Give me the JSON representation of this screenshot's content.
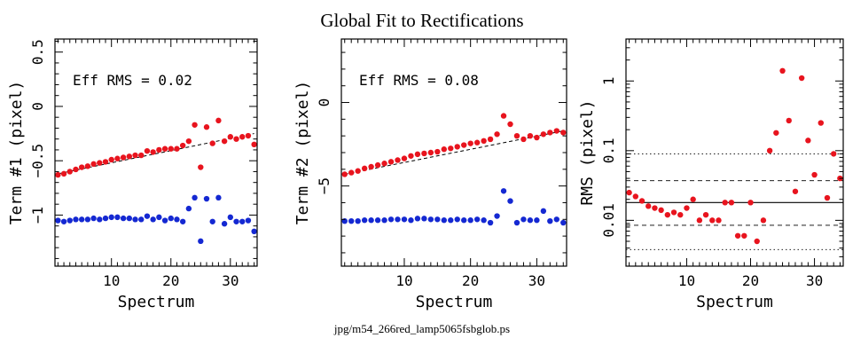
{
  "figure": {
    "title": "Global Fit to Rectifications",
    "footer": "jpg/m54_266red_lamp5065fsbglob.ps"
  },
  "colors": {
    "red": "#e8141e",
    "blue": "#1428d2",
    "axis": "#000000"
  },
  "chart_data": [
    {
      "type": "scatter",
      "xlabel": "Spectrum",
      "ylabel": "Term #1  (pixel)",
      "annotation": "Eff RMS = 0.02",
      "xlim": [
        0.5,
        34.5
      ],
      "ylim": [
        -1.47,
        0.62
      ],
      "xticks": [
        10,
        20,
        30
      ],
      "yticks": [
        -1,
        -0.5,
        0,
        0.5
      ],
      "ytick_labels": [
        "−1",
        "−0.5",
        "0",
        "0.5"
      ],
      "series": [
        {
          "color": "red",
          "x": [
            1,
            2,
            3,
            4,
            5,
            6,
            7,
            8,
            9,
            10,
            11,
            12,
            13,
            14,
            15,
            16,
            17,
            18,
            19,
            20,
            21,
            22,
            23,
            24,
            25,
            26,
            27,
            28,
            29,
            30,
            31,
            32,
            33,
            34
          ],
          "y": [
            -0.63,
            -0.62,
            -0.6,
            -0.58,
            -0.56,
            -0.55,
            -0.53,
            -0.52,
            -0.51,
            -0.49,
            -0.48,
            -0.47,
            -0.46,
            -0.45,
            -0.45,
            -0.41,
            -0.42,
            -0.4,
            -0.39,
            -0.39,
            -0.39,
            -0.36,
            -0.32,
            -0.17,
            -0.56,
            -0.19,
            -0.34,
            -0.13,
            -0.32,
            -0.28,
            -0.3,
            -0.28,
            -0.27,
            -0.35
          ]
        },
        {
          "color": "blue",
          "x": [
            1,
            2,
            3,
            4,
            5,
            6,
            7,
            8,
            9,
            10,
            11,
            12,
            13,
            14,
            15,
            16,
            17,
            18,
            19,
            20,
            21,
            22,
            23,
            24,
            25,
            26,
            27,
            28,
            29,
            30,
            31,
            32,
            33,
            34
          ],
          "y": [
            -1.05,
            -1.06,
            -1.05,
            -1.04,
            -1.04,
            -1.04,
            -1.03,
            -1.04,
            -1.03,
            -1.02,
            -1.02,
            -1.03,
            -1.03,
            -1.04,
            -1.04,
            -1.01,
            -1.04,
            -1.02,
            -1.05,
            -1.03,
            -1.04,
            -1.06,
            -0.94,
            -0.84,
            -1.24,
            -0.85,
            -1.06,
            -0.84,
            -1.08,
            -1.02,
            -1.06,
            -1.06,
            -1.05,
            -1.15
          ]
        }
      ],
      "fit_line": {
        "x": [
          1,
          34
        ],
        "y": [
          -0.62,
          -0.25
        ]
      }
    },
    {
      "type": "scatter",
      "xlabel": "Spectrum",
      "ylabel": "Term #2  (pixel)",
      "annotation": "Eff RMS = 0.08",
      "xlim": [
        0.5,
        34.5
      ],
      "ylim": [
        -9.8,
        3.8
      ],
      "xticks": [
        10,
        20,
        30
      ],
      "yticks": [
        -5,
        0
      ],
      "ytick_labels": [
        "−5",
        "0"
      ],
      "series": [
        {
          "color": "red",
          "x": [
            1,
            2,
            3,
            4,
            5,
            6,
            7,
            8,
            9,
            10,
            11,
            12,
            13,
            14,
            15,
            16,
            17,
            18,
            19,
            20,
            21,
            22,
            23,
            24,
            25,
            26,
            27,
            28,
            29,
            30,
            31,
            32,
            33,
            34
          ],
          "y": [
            -4.3,
            -4.2,
            -4.1,
            -3.95,
            -3.85,
            -3.75,
            -3.65,
            -3.55,
            -3.45,
            -3.35,
            -3.2,
            -3.1,
            -3.05,
            -3.0,
            -2.95,
            -2.8,
            -2.75,
            -2.65,
            -2.55,
            -2.45,
            -2.4,
            -2.3,
            -2.2,
            -1.9,
            -0.8,
            -1.3,
            -2.0,
            -2.2,
            -2.0,
            -2.1,
            -1.9,
            -1.8,
            -1.7,
            -1.8
          ]
        },
        {
          "color": "blue",
          "x": [
            1,
            2,
            3,
            4,
            5,
            6,
            7,
            8,
            9,
            10,
            11,
            12,
            13,
            14,
            15,
            16,
            17,
            18,
            19,
            20,
            21,
            22,
            23,
            24,
            25,
            26,
            27,
            28,
            29,
            30,
            31,
            32,
            33,
            34
          ],
          "y": [
            -7.1,
            -7.1,
            -7.1,
            -7.05,
            -7.05,
            -7.05,
            -7.05,
            -7.0,
            -7.0,
            -7.0,
            -7.05,
            -6.95,
            -6.95,
            -7.0,
            -7.0,
            -7.05,
            -7.05,
            -7.0,
            -7.05,
            -7.05,
            -7.0,
            -7.05,
            -7.2,
            -6.8,
            -5.3,
            -5.9,
            -7.2,
            -7.0,
            -7.05,
            -7.05,
            -6.5,
            -7.1,
            -7.0,
            -7.2
          ]
        }
      ],
      "fit_line": {
        "x": [
          1,
          34
        ],
        "y": [
          -4.3,
          -1.7
        ]
      }
    },
    {
      "type": "scatter",
      "xlabel": "Spectrum",
      "ylabel": "RMS  (pixel)",
      "yscale": "log",
      "xlim": [
        0.5,
        34.5
      ],
      "ylim": [
        0.0022,
        4.0
      ],
      "xticks": [
        10,
        20,
        30
      ],
      "yticks": [
        0.01,
        0.1,
        1
      ],
      "ytick_labels": [
        "0.01",
        "0.1",
        "1"
      ],
      "series": [
        {
          "color": "red",
          "x": [
            1,
            2,
            3,
            4,
            5,
            6,
            7,
            8,
            9,
            10,
            11,
            12,
            13,
            14,
            15,
            16,
            17,
            18,
            19,
            20,
            21,
            22,
            23,
            24,
            25,
            26,
            27,
            28,
            29,
            30,
            31,
            32,
            33,
            34
          ],
          "y": [
            0.025,
            0.022,
            0.019,
            0.016,
            0.015,
            0.014,
            0.012,
            0.013,
            0.012,
            0.015,
            0.02,
            0.01,
            0.012,
            0.01,
            0.01,
            0.018,
            0.018,
            0.006,
            0.006,
            0.018,
            0.005,
            0.01,
            0.1,
            0.18,
            1.4,
            0.27,
            0.026,
            1.1,
            0.14,
            0.045,
            0.25,
            0.021,
            0.09,
            0.04
          ]
        }
      ],
      "reference_lines": {
        "solid": [
          0.018
        ],
        "dashed": [
          0.037,
          0.0085
        ],
        "dotted": [
          0.09,
          0.0038
        ]
      }
    }
  ]
}
